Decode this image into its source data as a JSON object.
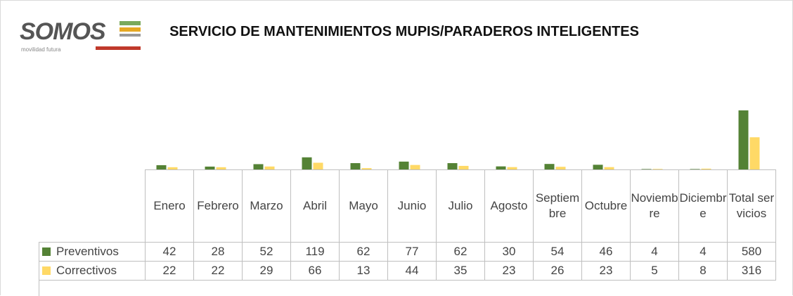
{
  "logo": {
    "text": "SOMOS",
    "tagline": "movilidad futura"
  },
  "chart_data": {
    "type": "bar",
    "title": "SERVICIO DE MANTENIMIENTOS MUPIS/PARADEROS INTELIGENTES",
    "categories": [
      "Enero",
      "Febrero",
      "Marzo",
      "Abril",
      "Mayo",
      "Junio",
      "Julio",
      "Agosto",
      "Septiembre",
      "Octubre",
      "Noviembre",
      "Diciembre",
      "Total servicios"
    ],
    "series": [
      {
        "name": "Preventivos",
        "color": "#548235",
        "values": [
          42,
          28,
          52,
          119,
          62,
          77,
          62,
          30,
          54,
          46,
          4,
          4,
          580
        ]
      },
      {
        "name": "Correctivos",
        "color": "#ffd966",
        "values": [
          22,
          22,
          29,
          66,
          13,
          44,
          35,
          23,
          26,
          23,
          5,
          8,
          316
        ]
      }
    ]
  }
}
